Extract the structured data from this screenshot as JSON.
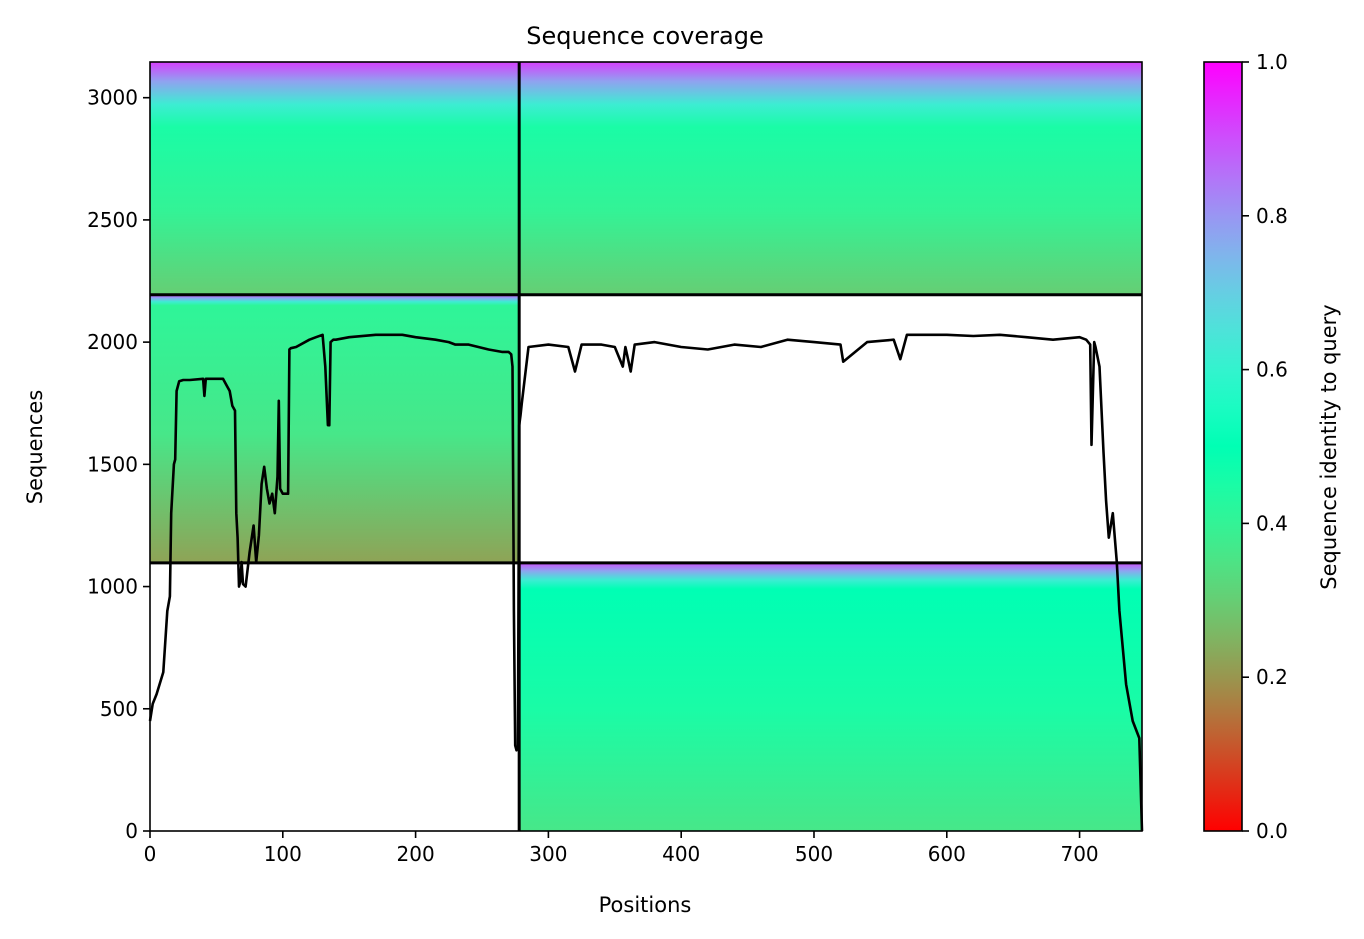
{
  "chart_data": {
    "type": "heatmap",
    "title": "Sequence coverage",
    "xlabel": "Positions",
    "ylabel": "Sequences",
    "xlim": [
      0,
      747
    ],
    "ylim": [
      0,
      3146
    ],
    "xticks": [
      0,
      100,
      200,
      300,
      400,
      500,
      600,
      700
    ],
    "yticks": [
      0,
      500,
      1000,
      1500,
      2000,
      2500,
      3000
    ],
    "grid": false,
    "colormap": "rainbow_r",
    "colorbar": {
      "label": "Sequence identity to query",
      "range": [
        0,
        1
      ],
      "ticks": [
        "0.0",
        "0.2",
        "0.4",
        "0.6",
        "0.8",
        "1.0"
      ]
    },
    "segment_boundaries": {
      "x": [
        278
      ],
      "y": [
        1097,
        2194
      ]
    },
    "blocks": [
      {
        "x": [
          278,
          747
        ],
        "y": [
          0,
          1097
        ],
        "identity_bottom": 0.36,
        "identity_body": 0.45,
        "identity_top": 0.9,
        "body_end": 990
      },
      {
        "x": [
          0,
          278
        ],
        "y": [
          1097,
          2194
        ],
        "identity_bottom": 0.22,
        "identity_body": 0.36,
        "identity_top": 0.9,
        "body_end": 2150
      },
      {
        "x": [
          0,
          278
        ],
        "y": [
          2194,
          3146
        ],
        "identity_bottom": 0.3,
        "identity_body": 0.4,
        "identity_top": 0.92,
        "body_end": 2880
      },
      {
        "x": [
          278,
          747
        ],
        "y": [
          2194,
          3146
        ],
        "identity_bottom": 0.3,
        "identity_body": 0.4,
        "identity_top": 0.92,
        "body_end": 2880
      }
    ],
    "coverage_line": {
      "x": [
        0,
        2,
        5,
        10,
        13,
        15,
        16,
        18,
        19,
        20,
        22,
        25,
        30,
        40,
        41,
        42,
        50,
        55,
        58,
        60,
        62,
        64,
        65,
        66,
        67,
        68,
        69,
        70,
        72,
        75,
        78,
        80,
        82,
        84,
        86,
        88,
        90,
        92,
        94,
        96,
        97,
        98,
        100,
        102,
        104,
        105,
        106,
        110,
        120,
        125,
        130,
        132,
        134,
        135,
        136,
        138,
        140,
        150,
        170,
        190,
        200,
        215,
        225,
        230,
        240,
        255,
        265,
        270,
        272,
        273,
        274,
        275,
        276,
        277,
        278,
        279,
        280,
        285,
        300,
        315,
        320,
        325,
        340,
        350,
        356,
        358,
        362,
        365,
        380,
        400,
        420,
        440,
        460,
        480,
        500,
        520,
        522,
        540,
        560,
        565,
        570,
        580,
        600,
        620,
        640,
        660,
        680,
        700,
        705,
        708,
        709,
        711,
        712,
        715,
        718,
        720,
        722,
        725,
        728,
        730,
        735,
        740,
        745,
        747
      ],
      "y": [
        450,
        520,
        560,
        650,
        900,
        960,
        1300,
        1500,
        1520,
        1800,
        1840,
        1845,
        1845,
        1850,
        1780,
        1850,
        1850,
        1850,
        1820,
        1800,
        1740,
        1720,
        1300,
        1200,
        1000,
        1020,
        1100,
        1010,
        1000,
        1140,
        1250,
        1100,
        1210,
        1420,
        1490,
        1400,
        1340,
        1380,
        1300,
        1450,
        1760,
        1400,
        1380,
        1380,
        1380,
        1970,
        1975,
        1980,
        2010,
        2020,
        2030,
        1900,
        1660,
        1660,
        2000,
        2010,
        2010,
        2020,
        2030,
        2030,
        2020,
        2010,
        2000,
        1990,
        1990,
        1970,
        1960,
        1960,
        1950,
        1900,
        900,
        350,
        330,
        340,
        1660,
        1700,
        1750,
        1980,
        1990,
        1980,
        1880,
        1990,
        1990,
        1980,
        1900,
        1980,
        1880,
        1990,
        2000,
        1980,
        1970,
        1990,
        1980,
        2010,
        2000,
        1990,
        1920,
        2000,
        2010,
        1930,
        2030,
        2030,
        2030,
        2025,
        2030,
        2020,
        2010,
        2020,
        2010,
        1990,
        1580,
        2000,
        1980,
        1900,
        1550,
        1350,
        1200,
        1300,
        1100,
        900,
        600,
        450,
        380,
        0
      ]
    }
  }
}
